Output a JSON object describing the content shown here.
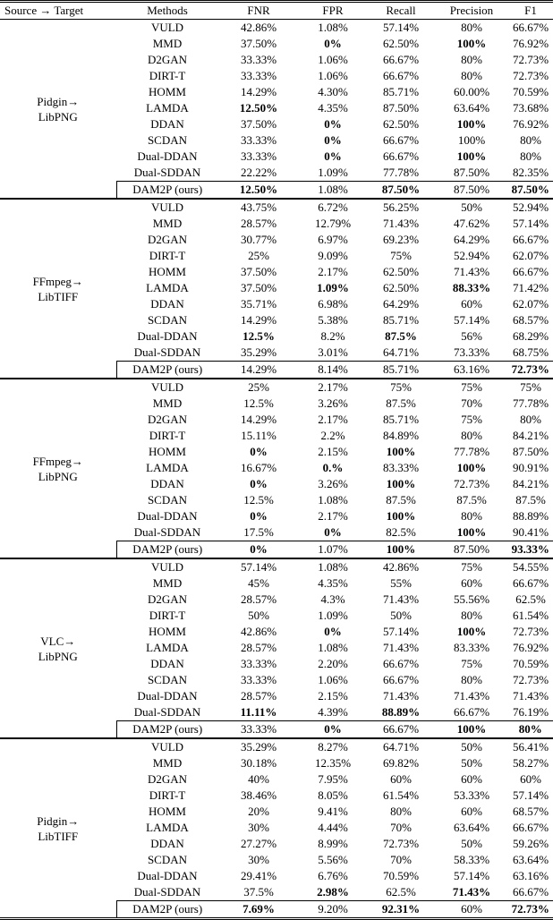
{
  "table": {
    "columns": [
      "Source → Target",
      "Methods",
      "FNR",
      "FPR",
      "Recall",
      "Precision",
      "F1"
    ]
  },
  "groups": [
    {
      "source": "Pidgin→",
      "target": "LibPNG",
      "rows": [
        {
          "cells": [
            "VULD",
            "42.86%",
            "1.08%",
            "57.14%",
            "80%",
            "66.67%"
          ],
          "bold": []
        },
        {
          "cells": [
            "MMD",
            "37.50%",
            "0%",
            "62.50%",
            "100%",
            "76.92%"
          ],
          "bold": [
            2,
            4
          ]
        },
        {
          "cells": [
            "D2GAN",
            "33.33%",
            "1.06%",
            "66.67%",
            "80%",
            "72.73%"
          ],
          "bold": []
        },
        {
          "cells": [
            "DIRT-T",
            "33.33%",
            "1.06%",
            "66.67%",
            "80%",
            "72.73%"
          ],
          "bold": []
        },
        {
          "cells": [
            "HOMM",
            "14.29%",
            "4.30%",
            "85.71%",
            "60.00%",
            "70.59%"
          ],
          "bold": []
        },
        {
          "cells": [
            "LAMDA",
            "12.50%",
            "4.35%",
            "87.50%",
            "63.64%",
            "73.68%"
          ],
          "bold": [
            1
          ]
        },
        {
          "cells": [
            "DDAN",
            "37.50%",
            "0%",
            "62.50%",
            "100%",
            "76.92%"
          ],
          "bold": [
            2,
            4
          ]
        },
        {
          "cells": [
            "SCDAN",
            "33.33%",
            "0%",
            "66.67%",
            "100%",
            "80%"
          ],
          "bold": [
            2
          ]
        },
        {
          "cells": [
            "Dual-DDAN",
            "33.33%",
            "0%",
            "66.67%",
            "100%",
            "80%"
          ],
          "bold": [
            2,
            4
          ]
        },
        {
          "cells": [
            "Dual-SDDAN",
            "22.22%",
            "1.09%",
            "77.78%",
            "87.50%",
            "82.35%"
          ],
          "bold": []
        },
        {
          "cells": [
            "DAM2P (ours)",
            "12.50%",
            "1.08%",
            "87.50%",
            "87.50%",
            "87.50%"
          ],
          "bold": [
            1,
            3,
            5
          ]
        }
      ]
    },
    {
      "source": "FFmpeg→",
      "target": "LibTIFF",
      "rows": [
        {
          "cells": [
            "VULD",
            "43.75%",
            "6.72%",
            "56.25%",
            "50%",
            "52.94%"
          ],
          "bold": []
        },
        {
          "cells": [
            "MMD",
            "28.57%",
            "12.79%",
            "71.43%",
            "47.62%",
            "57.14%"
          ],
          "bold": []
        },
        {
          "cells": [
            "D2GAN",
            "30.77%",
            "6.97%",
            "69.23%",
            "64.29%",
            "66.67%"
          ],
          "bold": []
        },
        {
          "cells": [
            "DIRT-T",
            "25%",
            "9.09%",
            "75%",
            "52.94%",
            "62.07%"
          ],
          "bold": []
        },
        {
          "cells": [
            "HOMM",
            "37.50%",
            "2.17%",
            "62.50%",
            "71.43%",
            "66.67%"
          ],
          "bold": []
        },
        {
          "cells": [
            "LAMDA",
            "37.50%",
            "1.09%",
            "62.50%",
            "88.33%",
            "71.42%"
          ],
          "bold": [
            2,
            4
          ]
        },
        {
          "cells": [
            "DDAN",
            "35.71%",
            "6.98%",
            "64.29%",
            "60%",
            "62.07%"
          ],
          "bold": []
        },
        {
          "cells": [
            "SCDAN",
            "14.29%",
            "5.38%",
            "85.71%",
            "57.14%",
            "68.57%"
          ],
          "bold": []
        },
        {
          "cells": [
            "Dual-DDAN",
            "12.5%",
            "8.2%",
            "87.5%",
            "56%",
            "68.29%"
          ],
          "bold": [
            1,
            3
          ]
        },
        {
          "cells": [
            "Dual-SDDAN",
            "35.29%",
            "3.01%",
            "64.71%",
            "73.33%",
            "68.75%"
          ],
          "bold": []
        },
        {
          "cells": [
            "DAM2P (ours)",
            "14.29%",
            "8.14%",
            "85.71%",
            "63.16%",
            "72.73%"
          ],
          "bold": [
            5
          ]
        }
      ]
    },
    {
      "source": "FFmpeg→",
      "target": "LibPNG",
      "rows": [
        {
          "cells": [
            "VULD",
            "25%",
            "2.17%",
            "75%",
            "75%",
            "75%"
          ],
          "bold": []
        },
        {
          "cells": [
            "MMD",
            "12.5%",
            "3.26%",
            "87.5%",
            "70%",
            "77.78%"
          ],
          "bold": []
        },
        {
          "cells": [
            "D2GAN",
            "14.29%",
            "2.17%",
            "85.71%",
            "75%",
            "80%"
          ],
          "bold": []
        },
        {
          "cells": [
            "DIRT-T",
            "15.11%",
            "2.2%",
            "84.89%",
            "80%",
            "84.21%"
          ],
          "bold": []
        },
        {
          "cells": [
            "HOMM",
            "0%",
            "2.15%",
            "100%",
            "77.78%",
            "87.50%"
          ],
          "bold": [
            1,
            3
          ]
        },
        {
          "cells": [
            "LAMDA",
            "16.67%",
            "0.%",
            "83.33%",
            "100%",
            "90.91%"
          ],
          "bold": [
            2,
            4
          ]
        },
        {
          "cells": [
            "DDAN",
            "0%",
            "3.26%",
            "100%",
            "72.73%",
            "84.21%"
          ],
          "bold": [
            1,
            3
          ]
        },
        {
          "cells": [
            "SCDAN",
            "12.5%",
            "1.08%",
            "87.5%",
            "87.5%",
            "87.5%"
          ],
          "bold": []
        },
        {
          "cells": [
            "Dual-DDAN",
            "0%",
            "2.17%",
            "100%",
            "80%",
            "88.89%"
          ],
          "bold": [
            1,
            3
          ]
        },
        {
          "cells": [
            "Dual-SDDAN",
            "17.5%",
            "0%",
            "82.5%",
            "100%",
            "90.41%"
          ],
          "bold": [
            2,
            4
          ]
        },
        {
          "cells": [
            "DAM2P (ours)",
            "0%",
            "1.07%",
            "100%",
            "87.50%",
            "93.33%"
          ],
          "bold": [
            1,
            3,
            5
          ]
        }
      ]
    },
    {
      "source": "VLC→",
      "target": "LibPNG",
      "rows": [
        {
          "cells": [
            "VULD",
            "57.14%",
            "1.08%",
            "42.86%",
            "75%",
            "54.55%"
          ],
          "bold": []
        },
        {
          "cells": [
            "MMD",
            "45%",
            "4.35%",
            "55%",
            "60%",
            "66.67%"
          ],
          "bold": []
        },
        {
          "cells": [
            "D2GAN",
            "28.57%",
            "4.3%",
            "71.43%",
            "55.56%",
            "62.5%"
          ],
          "bold": []
        },
        {
          "cells": [
            "DIRT-T",
            "50%",
            "1.09%",
            "50%",
            "80%",
            "61.54%"
          ],
          "bold": []
        },
        {
          "cells": [
            "HOMM",
            "42.86%",
            "0%",
            "57.14%",
            "100%",
            "72.73%"
          ],
          "bold": [
            2,
            4
          ]
        },
        {
          "cells": [
            "LAMDA",
            "28.57%",
            "1.08%",
            "71.43%",
            "83.33%",
            "76.92%"
          ],
          "bold": []
        },
        {
          "cells": [
            "DDAN",
            "33.33%",
            "2.20%",
            "66.67%",
            "75%",
            "70.59%"
          ],
          "bold": []
        },
        {
          "cells": [
            "SCDAN",
            "33.33%",
            "1.06%",
            "66.67%",
            "80%",
            "72.73%"
          ],
          "bold": []
        },
        {
          "cells": [
            "Dual-DDAN",
            "28.57%",
            "2.15%",
            "71.43%",
            "71.43%",
            "71.43%"
          ],
          "bold": []
        },
        {
          "cells": [
            "Dual-SDDAN",
            "11.11%",
            "4.39%",
            "88.89%",
            "66.67%",
            "76.19%"
          ],
          "bold": [
            1,
            3
          ]
        },
        {
          "cells": [
            "DAM2P (ours)",
            "33.33%",
            "0%",
            "66.67%",
            "100%",
            "80%"
          ],
          "bold": [
            2,
            4,
            5
          ]
        }
      ]
    },
    {
      "source": "Pidgin→",
      "target": "LibTIFF",
      "rows": [
        {
          "cells": [
            "VULD",
            "35.29%",
            "8.27%",
            "64.71%",
            "50%",
            "56.41%"
          ],
          "bold": []
        },
        {
          "cells": [
            "MMD",
            "30.18%",
            "12.35%",
            "69.82%",
            "50%",
            "58.27%"
          ],
          "bold": []
        },
        {
          "cells": [
            "D2GAN",
            "40%",
            "7.95%",
            "60%",
            "60%",
            "60%"
          ],
          "bold": []
        },
        {
          "cells": [
            "DIRT-T",
            "38.46%",
            "8.05%",
            "61.54%",
            "53.33%",
            "57.14%"
          ],
          "bold": []
        },
        {
          "cells": [
            "HOMM",
            "20%",
            "9.41%",
            "80%",
            "60%",
            "68.57%"
          ],
          "bold": []
        },
        {
          "cells": [
            "LAMDA",
            "30%",
            "4.44%",
            "70%",
            "63.64%",
            "66.67%"
          ],
          "bold": []
        },
        {
          "cells": [
            "DDAN",
            "27.27%",
            "8.99%",
            "72.73%",
            "50%",
            "59.26%"
          ],
          "bold": []
        },
        {
          "cells": [
            "SCDAN",
            "30%",
            "5.56%",
            "70%",
            "58.33%",
            "63.64%"
          ],
          "bold": []
        },
        {
          "cells": [
            "Dual-DDAN",
            "29.41%",
            "6.76%",
            "70.59%",
            "57.14%",
            "63.16%"
          ],
          "bold": []
        },
        {
          "cells": [
            "Dual-SDDAN",
            "37.5%",
            "2.98%",
            "62.5%",
            "71.43%",
            "66.67%"
          ],
          "bold": [
            2,
            4
          ]
        },
        {
          "cells": [
            "DAM2P (ours)",
            "7.69%",
            "9.20%",
            "92.31%",
            "60%",
            "72.73%"
          ],
          "bold": [
            1,
            3,
            5
          ]
        }
      ]
    }
  ]
}
